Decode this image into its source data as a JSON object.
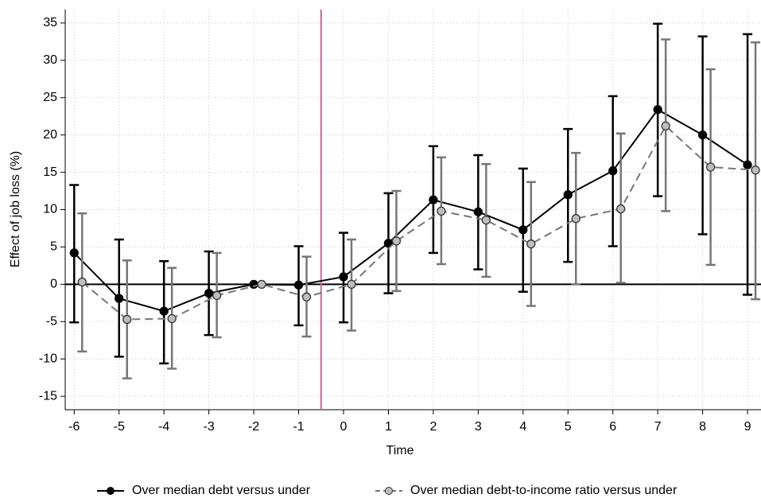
{
  "chart_data": {
    "type": "line_errorbar",
    "xlabel": "Time",
    "ylabel": "Effect of job loss (%)",
    "x": [
      -6,
      -5,
      -4,
      -3,
      -2,
      -1,
      0,
      1,
      2,
      3,
      4,
      5,
      6,
      7,
      8,
      9
    ],
    "series": [
      {
        "name": "Over median debt versus under",
        "color": "#000000",
        "marker_fill": "#000000",
        "dash": "none",
        "values": [
          4.2,
          -1.9,
          -3.6,
          -1.2,
          0,
          -0.1,
          1.0,
          5.5,
          11.3,
          9.7,
          7.3,
          12.0,
          15.2,
          23.4,
          20.0,
          16.0
        ],
        "upper": [
          13.3,
          6.0,
          3.1,
          4.4,
          null,
          5.1,
          6.9,
          12.2,
          18.5,
          17.3,
          15.5,
          20.8,
          25.2,
          34.9,
          33.2,
          33.5
        ],
        "lower": [
          -5.1,
          -9.7,
          -10.6,
          -6.8,
          null,
          -5.5,
          -5.1,
          -1.2,
          4.2,
          2.0,
          -1.0,
          3.0,
          5.1,
          11.8,
          6.7,
          -1.4
        ]
      },
      {
        "name": "Over median debt-to-income ratio versus under",
        "color": "#777777",
        "marker_fill": "#bdbdbd",
        "dash": "10 6",
        "values": [
          0.3,
          -4.7,
          -4.6,
          -1.5,
          0,
          -1.7,
          0,
          5.8,
          9.8,
          8.6,
          5.4,
          8.8,
          10.1,
          21.2,
          15.7,
          15.3
        ],
        "upper": [
          9.5,
          3.2,
          2.2,
          4.2,
          null,
          3.7,
          6.0,
          12.5,
          17.0,
          16.1,
          13.7,
          17.6,
          20.2,
          32.8,
          28.8,
          32.4
        ],
        "lower": [
          -9.0,
          -12.6,
          -11.3,
          -7.1,
          null,
          -7.0,
          -6.2,
          -0.9,
          2.7,
          1.0,
          -2.9,
          0,
          0.2,
          9.8,
          2.6,
          -2.0
        ]
      }
    ],
    "xlim": [
      -6.2,
      9.3
    ],
    "ylim": [
      -16.8,
      36.8
    ],
    "xticks": [
      -6,
      -5,
      -4,
      -3,
      -2,
      -1,
      0,
      1,
      2,
      3,
      4,
      5,
      6,
      7,
      8,
      9
    ],
    "yticks": [
      -15,
      -10,
      -5,
      0,
      5,
      10,
      15,
      20,
      25,
      30,
      35
    ],
    "grid": true,
    "hline": 0,
    "vline": -0.5,
    "vline_color": "#c46b97",
    "legend": "bottom"
  }
}
